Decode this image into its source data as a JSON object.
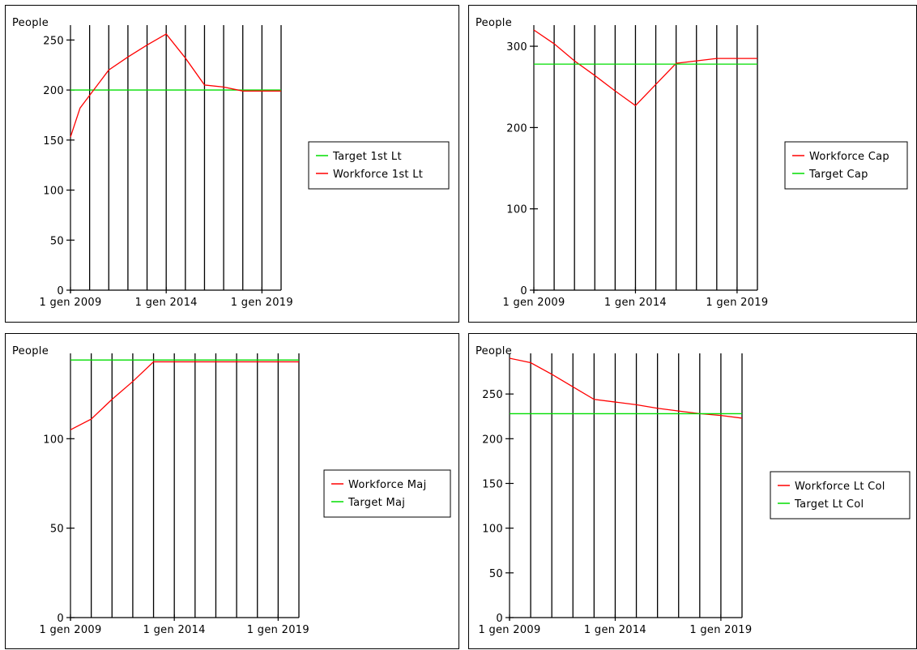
{
  "colors": {
    "workforce": "#ff0000",
    "target": "#00dd00",
    "axis": "#000000"
  },
  "chart_data": [
    {
      "type": "line",
      "ylabel": "People",
      "ylim": [
        0,
        260
      ],
      "yticks": [
        0,
        50,
        100,
        150,
        200,
        250
      ],
      "xlim": [
        2009,
        2020
      ],
      "xticks": [
        {
          "v": 2009,
          "label": "1 gen 2009"
        },
        {
          "v": 2014,
          "label": "1 gen 2014"
        },
        {
          "v": 2019,
          "label": "1 gen 2019"
        }
      ],
      "gridlines_x": [
        2010,
        2011,
        2012,
        2013,
        2014,
        2015,
        2016,
        2017,
        2018,
        2019,
        2020
      ],
      "legend_entries": [
        "Target 1st Lt",
        "Workforce 1st Lt"
      ],
      "series": [
        {
          "name": "Target 1st Lt",
          "color": "target",
          "x": [
            2009,
            2020
          ],
          "y": [
            200,
            200
          ]
        },
        {
          "name": "Workforce 1st Lt",
          "color": "workforce",
          "x": [
            2009,
            2009.5,
            2011,
            2012,
            2013,
            2014,
            2015,
            2016,
            2017,
            2018,
            2019,
            2020
          ],
          "y": [
            153,
            182,
            220,
            233,
            245,
            256,
            232,
            205,
            203,
            199,
            199,
            199
          ]
        }
      ]
    },
    {
      "type": "line",
      "ylabel": "People",
      "ylim": [
        0,
        320
      ],
      "yticks": [
        0,
        100,
        200,
        300
      ],
      "xlim": [
        2009,
        2020
      ],
      "xticks": [
        {
          "v": 2009,
          "label": "1 gen 2009"
        },
        {
          "v": 2014,
          "label": "1 gen 2014"
        },
        {
          "v": 2019,
          "label": "1 gen 2019"
        }
      ],
      "gridlines_x": [
        2010,
        2011,
        2012,
        2013,
        2014,
        2015,
        2016,
        2017,
        2018,
        2019,
        2020
      ],
      "legend_entries": [
        "Workforce Cap",
        "Target Cap"
      ],
      "series": [
        {
          "name": "Workforce Cap",
          "color": "workforce",
          "x": [
            2009,
            2010,
            2011,
            2012,
            2013,
            2014,
            2015,
            2016,
            2017,
            2018,
            2019,
            2020
          ],
          "y": [
            320,
            303,
            282,
            264,
            245,
            227,
            253,
            279,
            282,
            285,
            285,
            285
          ]
        },
        {
          "name": "Target Cap",
          "color": "target",
          "x": [
            2009,
            2020
          ],
          "y": [
            278,
            278
          ]
        }
      ]
    },
    {
      "type": "line",
      "ylabel": "People",
      "ylim": [
        0,
        145
      ],
      "yticks": [
        0,
        50,
        100
      ],
      "xlim": [
        2009,
        2020
      ],
      "xticks": [
        {
          "v": 2009,
          "label": "1 gen 2009"
        },
        {
          "v": 2014,
          "label": "1 gen 2014"
        },
        {
          "v": 2019,
          "label": "1 gen 2019"
        }
      ],
      "gridlines_x": [
        2010,
        2011,
        2012,
        2013,
        2014,
        2015,
        2016,
        2017,
        2018,
        2019,
        2020
      ],
      "legend_entries": [
        "Workforce Maj",
        "Target Maj"
      ],
      "series": [
        {
          "name": "Workforce Maj",
          "color": "workforce",
          "x": [
            2009,
            2010,
            2011,
            2012,
            2013,
            2014,
            2015,
            2016,
            2017,
            2018,
            2019,
            2020
          ],
          "y": [
            105,
            111,
            122,
            132,
            143,
            143,
            143,
            143,
            143,
            143,
            143,
            143
          ]
        },
        {
          "name": "Target Maj",
          "color": "target",
          "x": [
            2009,
            2020
          ],
          "y": [
            144,
            144
          ]
        }
      ]
    },
    {
      "type": "line",
      "ylabel": "People",
      "ylim": [
        0,
        290
      ],
      "yticks": [
        0,
        50,
        100,
        150,
        200,
        250
      ],
      "xlim": [
        2009,
        2020
      ],
      "xticks": [
        {
          "v": 2009,
          "label": "1 gen 2009"
        },
        {
          "v": 2014,
          "label": "1 gen 2014"
        },
        {
          "v": 2019,
          "label": "1 gen 2019"
        }
      ],
      "gridlines_x": [
        2010,
        2011,
        2012,
        2013,
        2014,
        2015,
        2016,
        2017,
        2018,
        2019,
        2020
      ],
      "legend_entries": [
        "Workforce Lt Col",
        "Target Lt Col"
      ],
      "series": [
        {
          "name": "Workforce Lt Col",
          "color": "workforce",
          "x": [
            2009,
            2010,
            2011,
            2012,
            2013,
            2014,
            2015,
            2016,
            2017,
            2018,
            2019,
            2020
          ],
          "y": [
            290,
            285,
            272,
            258,
            244,
            241,
            238,
            234,
            231,
            228,
            226,
            223
          ]
        },
        {
          "name": "Target Lt Col",
          "color": "target",
          "x": [
            2009,
            2020
          ],
          "y": [
            228,
            228
          ]
        }
      ]
    }
  ]
}
